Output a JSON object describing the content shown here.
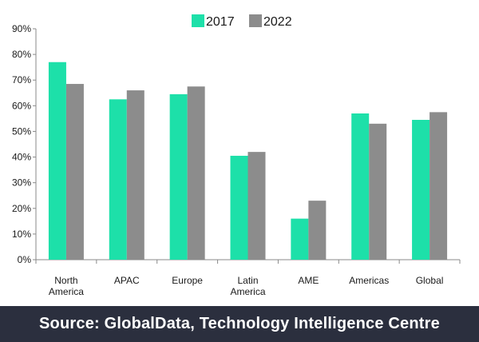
{
  "chart_data": {
    "type": "bar",
    "categories": [
      [
        "North",
        "America"
      ],
      [
        "APAC"
      ],
      [
        "Europe"
      ],
      [
        "Latin",
        "America"
      ],
      [
        "AME"
      ],
      [
        "Americas"
      ],
      [
        "Global"
      ]
    ],
    "series": [
      {
        "name": "2017",
        "values": [
          77,
          62.5,
          64.5,
          40.5,
          16,
          57,
          54.5
        ]
      },
      {
        "name": "2022",
        "values": [
          68.5,
          66,
          67.5,
          42,
          23,
          53,
          57.5
        ]
      }
    ],
    "y_ticks": [
      "0%",
      "10%",
      "20%",
      "30%",
      "40%",
      "50%",
      "60%",
      "70%",
      "80%",
      "90%"
    ],
    "ylim": [
      0,
      90
    ],
    "y_unit": "%",
    "legend_position": "top-center",
    "grid": false,
    "colors": {
      "2017": "#1de0a9",
      "2022": "#8c8c8c"
    },
    "title": "",
    "xlabel": "",
    "ylabel": ""
  },
  "footer": {
    "source": "Source: GlobalData, Technology Intelligence Centre",
    "background": "#2b2f3e"
  }
}
